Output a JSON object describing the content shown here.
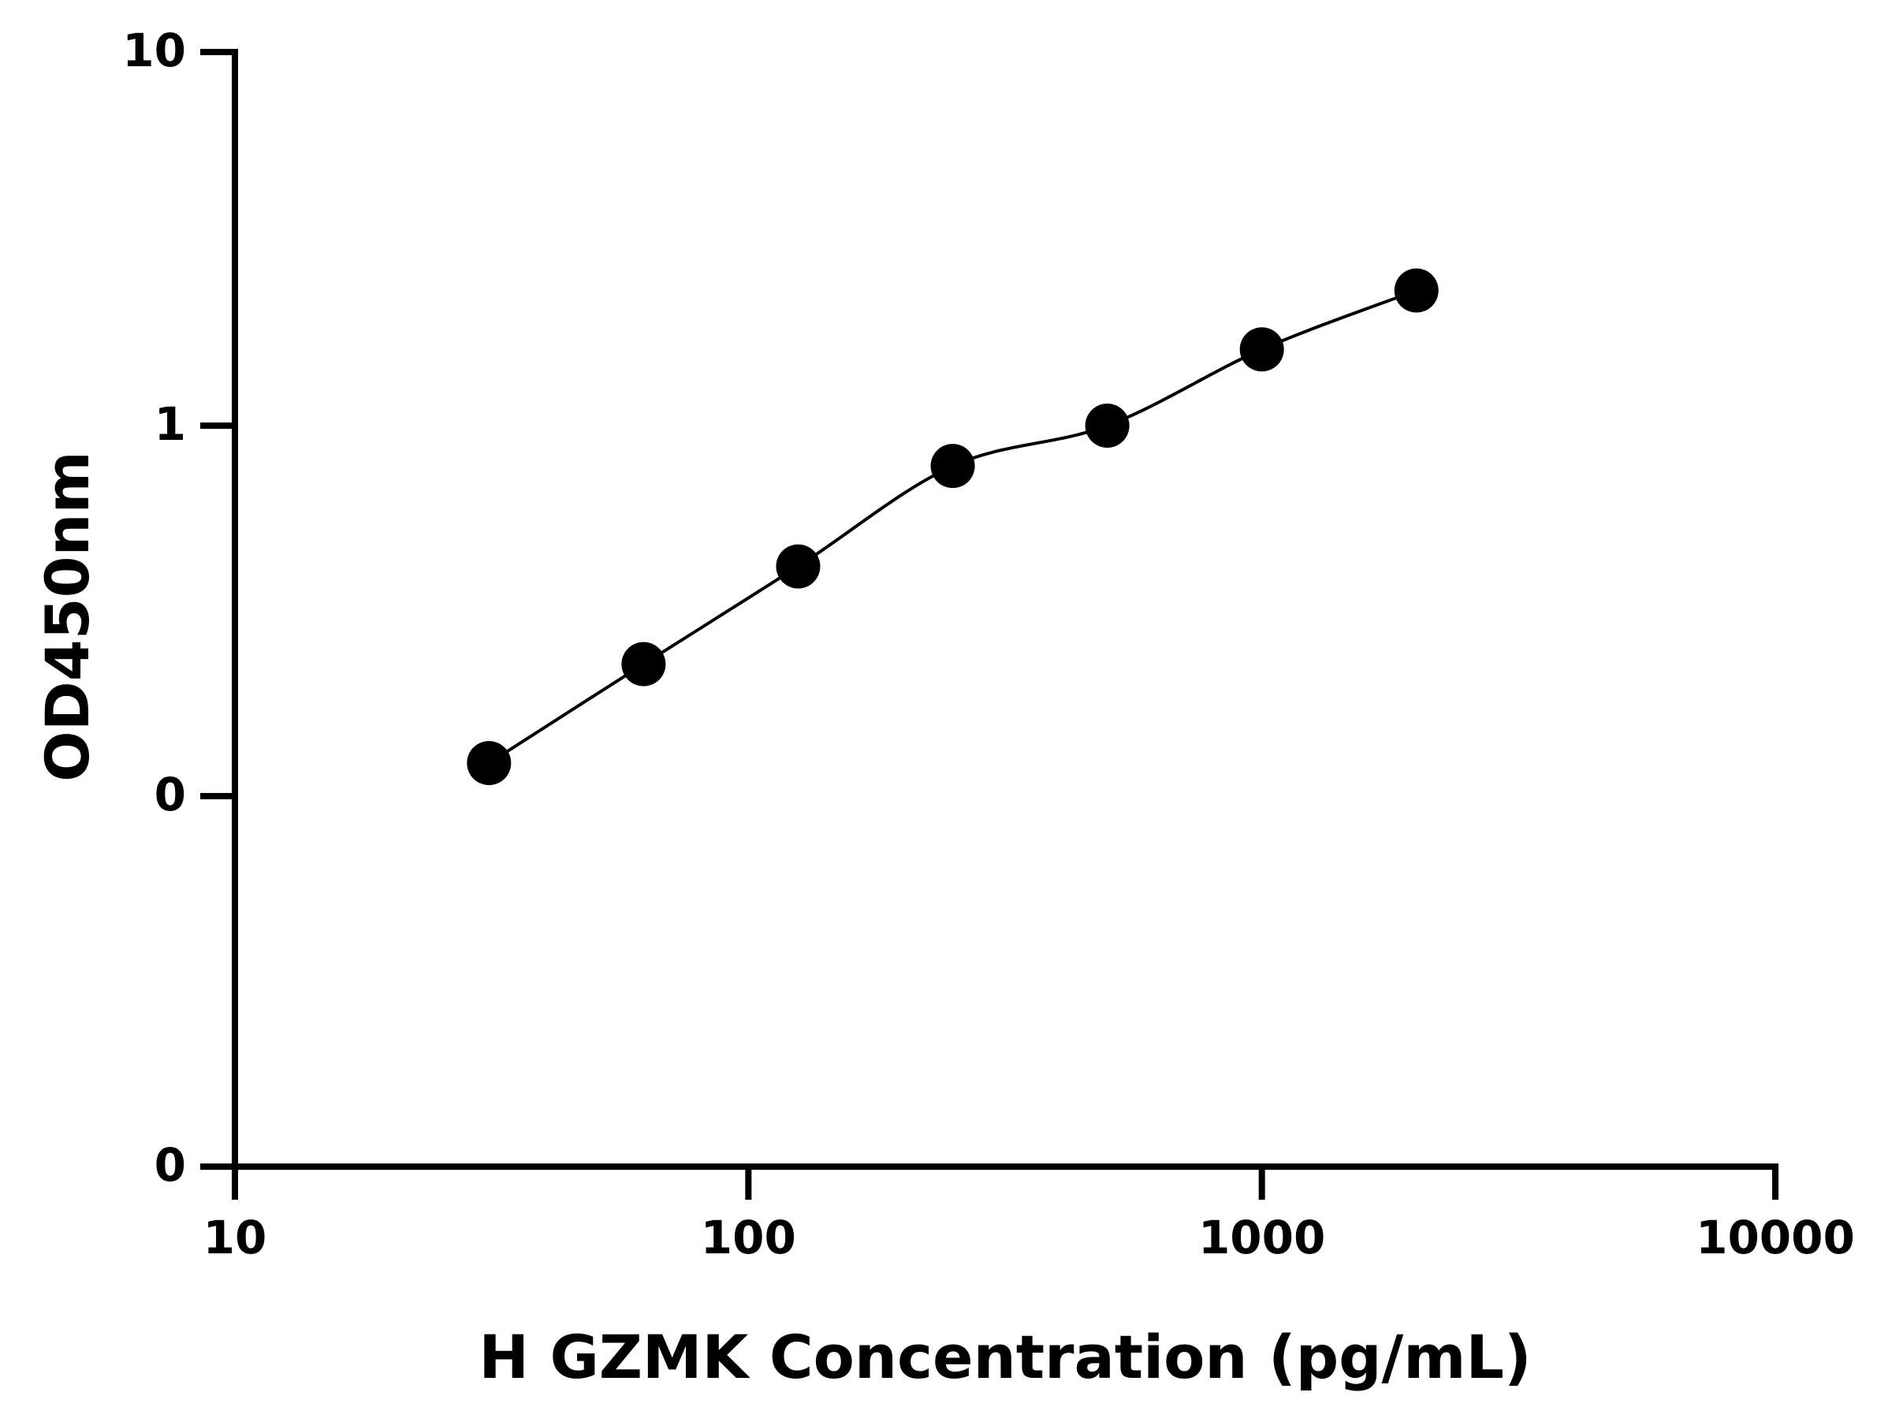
{
  "chart_data": {
    "type": "scatter",
    "title": "",
    "xlabel": "H GZMK Concentration (pg/mL)",
    "ylabel": "OD450nm",
    "x_scale": "log",
    "xlim": [
      10,
      10000
    ],
    "x_ticks": [
      10,
      100,
      1000,
      10000
    ],
    "x_tick_labels": [
      "10",
      "100",
      "1000",
      "10000"
    ],
    "y_tick_labels": [
      "10",
      "1",
      "0",
      "0"
    ],
    "grid": false,
    "legend": "none",
    "colors": {
      "axis": "#000000",
      "points": "#000000",
      "curve": "#000000",
      "background": "#ffffff"
    },
    "series": [
      {
        "x": [
          31.25,
          62.5,
          125,
          250,
          500,
          1000,
          2000
        ],
        "y": [
          0.125,
          0.23,
          0.42,
          0.78,
          1.0,
          1.6,
          2.3
        ]
      }
    ]
  }
}
